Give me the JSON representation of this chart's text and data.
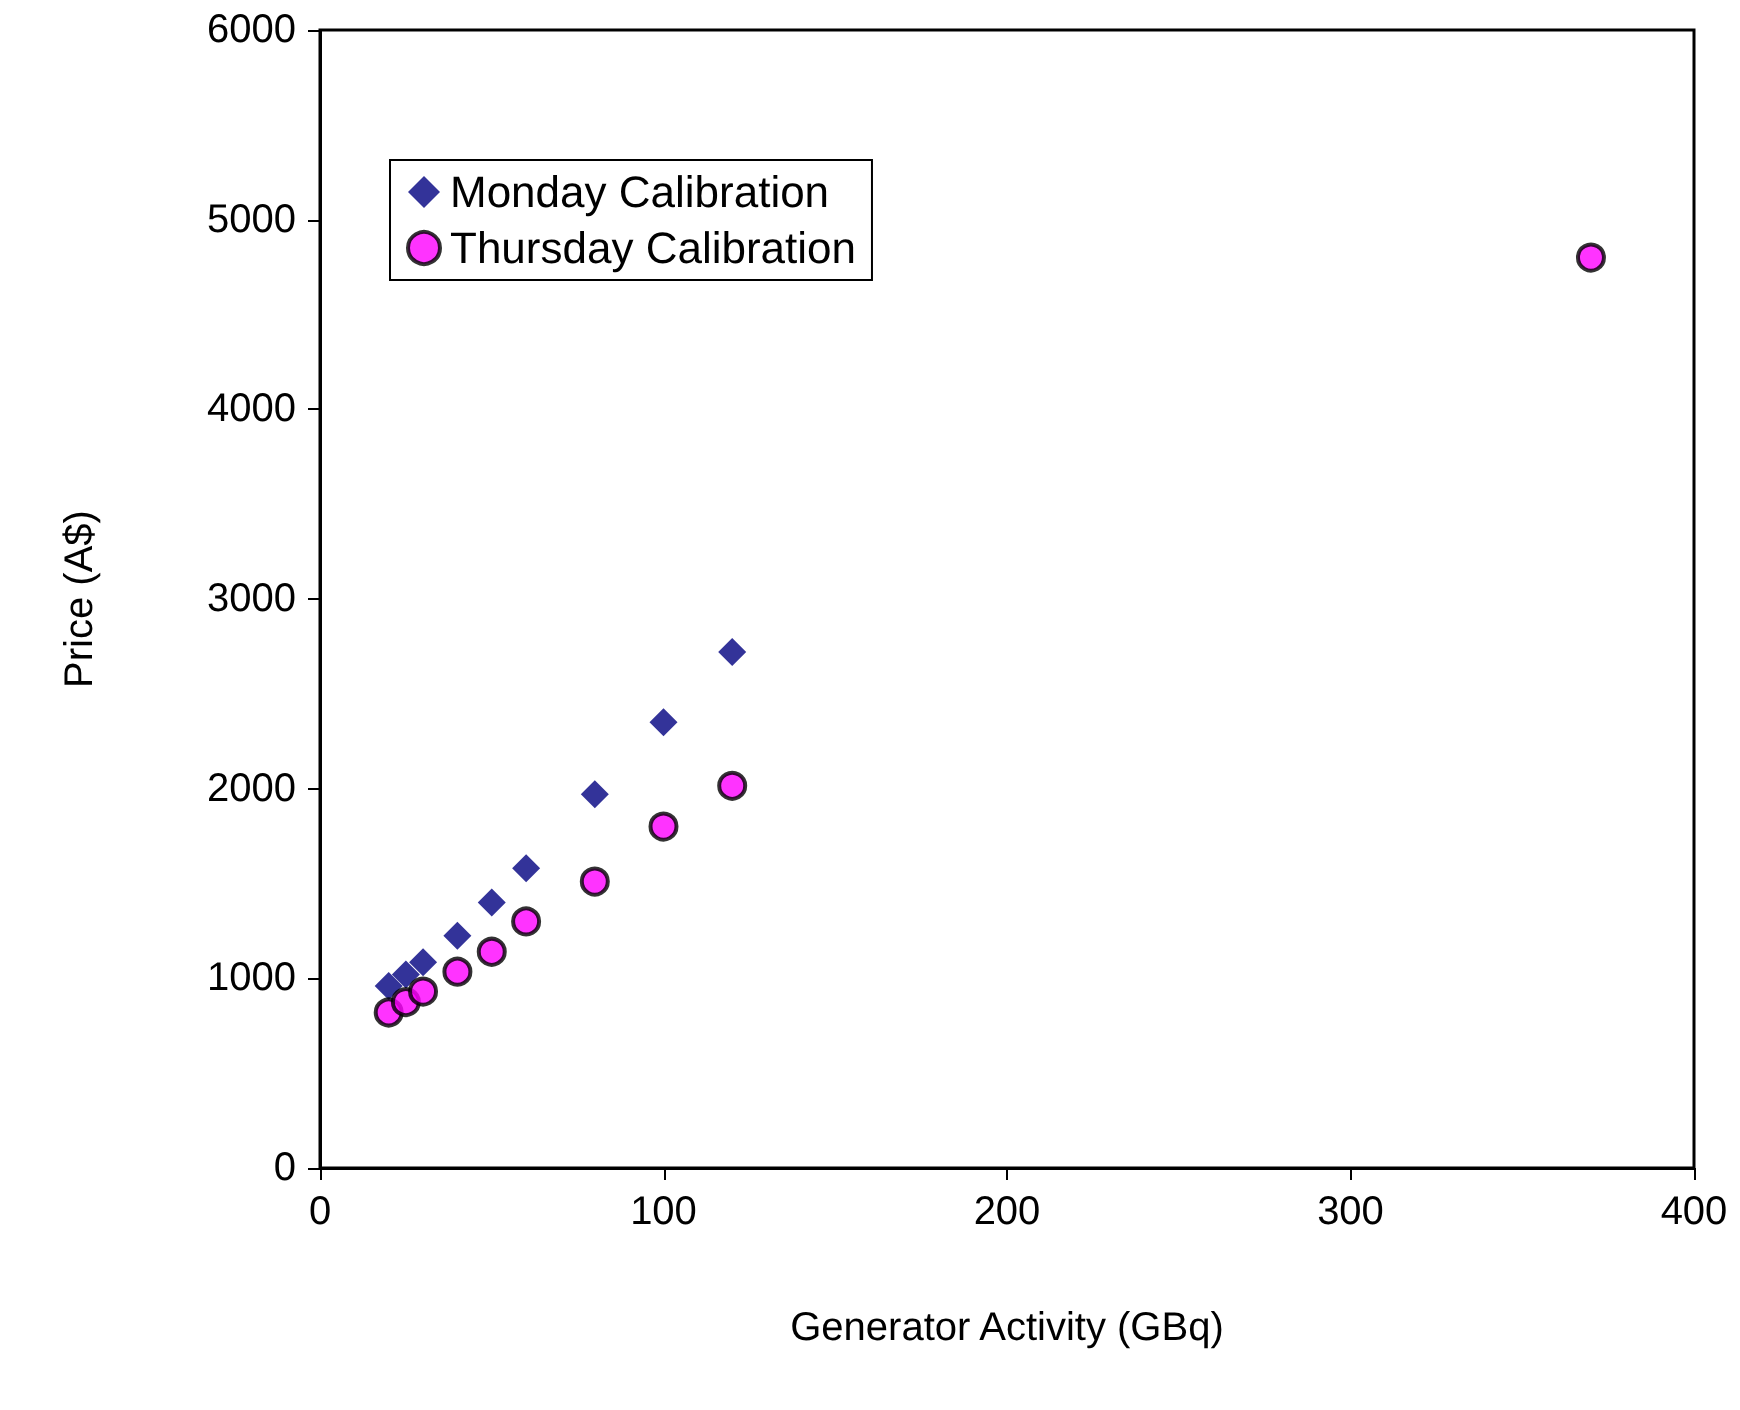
{
  "chart_data": {
    "type": "scatter",
    "xlabel": "Generator Activity (GBq)",
    "ylabel": "Price (A$)",
    "xlim": [
      0,
      400
    ],
    "xticks": [
      0,
      100,
      200,
      300,
      400
    ],
    "ylim": [
      0,
      6000
    ],
    "yticks": [
      0,
      1000,
      2000,
      3000,
      4000,
      5000,
      6000
    ],
    "grid": false,
    "legend": "top left",
    "series": [
      {
        "name": "Monday Calibration",
        "color": "#000080",
        "marker": "diamond",
        "x": [
          20,
          25,
          30,
          40,
          50,
          60,
          80,
          100,
          120
        ],
        "values": [
          960,
          1020,
          1085,
          1225,
          1400,
          1580,
          1970,
          2350,
          2720
        ]
      },
      {
        "name": "Thursday Calibration",
        "color": "#ff00ff",
        "marker": "circle",
        "x": [
          20,
          25,
          30,
          40,
          50,
          60,
          80,
          100,
          120,
          370
        ],
        "values": [
          820,
          875,
          930,
          1035,
          1140,
          1300,
          1510,
          1800,
          2015,
          4800
        ]
      }
    ]
  }
}
